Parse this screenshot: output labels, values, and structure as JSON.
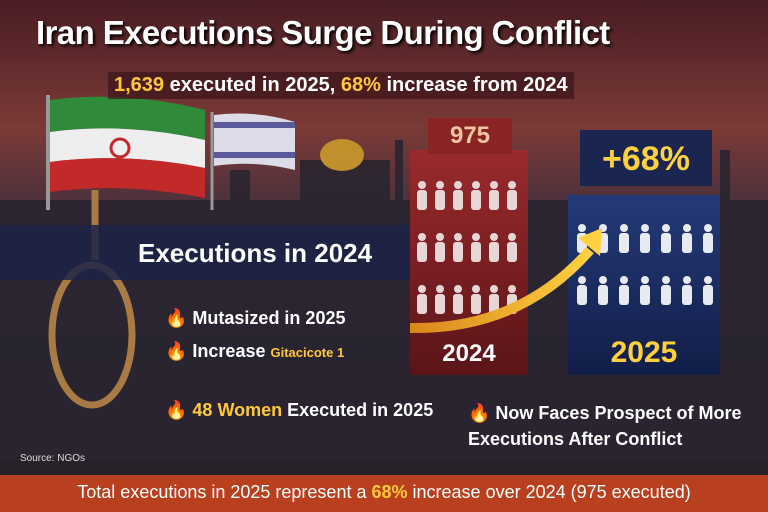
{
  "header": {
    "title": "Iran Executions Surge During Conflict",
    "subtitle": [
      "1,639",
      "executed in 2025,",
      "68%",
      "increase from 2024"
    ]
  },
  "panels": {
    "left_count": "975",
    "left_year": "2024",
    "right_change": "+68%",
    "right_year": "2025"
  },
  "banner": "Executions in 2024",
  "bullets": [
    {
      "text": "Mutasized in 2025"
    },
    {
      "text": "Increase",
      "tag": "Gitacicote 1"
    },
    {
      "highlight": "48 Women",
      "text": "Executed in 2025"
    },
    {
      "text": "Now Faces Prospect of More Executions After Conflict"
    }
  ],
  "source": "Source: NGOs",
  "footer": [
    "Total executions in 2025 represent a",
    "68%",
    "increase over 2024 (975 executed)"
  ]
}
